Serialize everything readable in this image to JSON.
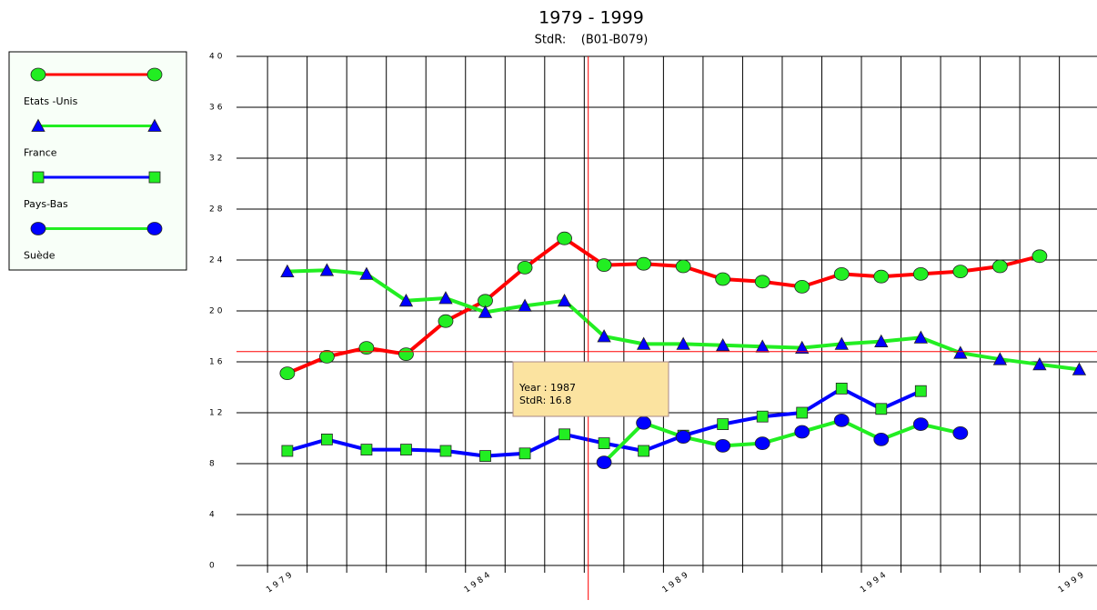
{
  "chart_data": {
    "type": "line",
    "title": "1979 - 1999",
    "subtitle": "StdR:    (B01-B079)",
    "x": [
      1979,
      1980,
      1981,
      1982,
      1983,
      1984,
      1985,
      1986,
      1987,
      1988,
      1989,
      1990,
      1991,
      1992,
      1993,
      1994,
      1995,
      1996,
      1997,
      1998,
      1999
    ],
    "series": [
      {
        "name": "Etats -Unis",
        "color": "#ff0000",
        "marker": "circle",
        "marker_color": "#22ee22",
        "values": [
          15.1,
          16.4,
          17.1,
          16.6,
          19.2,
          20.8,
          23.4,
          25.7,
          23.6,
          23.7,
          23.5,
          22.5,
          22.3,
          21.9,
          22.9,
          22.7,
          22.9,
          23.1,
          23.5,
          24.3,
          null
        ]
      },
      {
        "name": "France",
        "color": "#22ee22",
        "marker": "triangle",
        "marker_color": "#0000ff",
        "values": [
          23.1,
          23.2,
          22.9,
          20.8,
          21.0,
          19.9,
          20.4,
          20.8,
          18.0,
          17.4,
          17.4,
          17.3,
          17.2,
          17.1,
          17.4,
          17.6,
          17.9,
          16.7,
          16.2,
          15.8,
          15.4
        ]
      },
      {
        "name": "Pays-Bas",
        "color": "#0000ff",
        "marker": "square",
        "marker_color": "#22ee22",
        "values": [
          9.0,
          9.9,
          9.1,
          9.1,
          9.0,
          8.6,
          8.8,
          10.3,
          9.6,
          9.0,
          10.2,
          11.1,
          11.7,
          12.0,
          13.9,
          12.3,
          13.7,
          null,
          null,
          null,
          null
        ]
      },
      {
        "name": "Suède",
        "color": "#22ee22",
        "marker": "circle",
        "marker_color": "#0000ff",
        "values": [
          null,
          null,
          null,
          null,
          null,
          null,
          null,
          null,
          8.1,
          11.2,
          10.1,
          9.4,
          9.6,
          10.5,
          11.4,
          9.9,
          11.1,
          10.4,
          null,
          null,
          null
        ]
      }
    ],
    "xlim": [
      1977.9,
      1999.45
    ],
    "xticks": [
      1979,
      1984,
      1989,
      1994,
      1999
    ],
    "xgrid": [
      1978.5,
      1979.5,
      1980.5,
      1981.5,
      1982.5,
      1983.5,
      1984.5,
      1985.5,
      1986.5,
      1987.5,
      1988.5,
      1989.5,
      1990.5,
      1991.5,
      1992.5,
      1993.5,
      1994.5,
      1995.5,
      1996.5,
      1997.5,
      1998.5
    ],
    "ylim": [
      0,
      40
    ],
    "yticks": [
      0,
      4,
      8,
      12,
      16,
      20,
      24,
      28,
      32,
      36,
      40
    ],
    "grid": true,
    "legend": "left",
    "crosshair": {
      "x": 1986.6,
      "y": 16.8,
      "color": "#ff0000"
    },
    "tooltip": {
      "line1": "Year : 1987",
      "line2": "StdR: 16.8"
    }
  }
}
